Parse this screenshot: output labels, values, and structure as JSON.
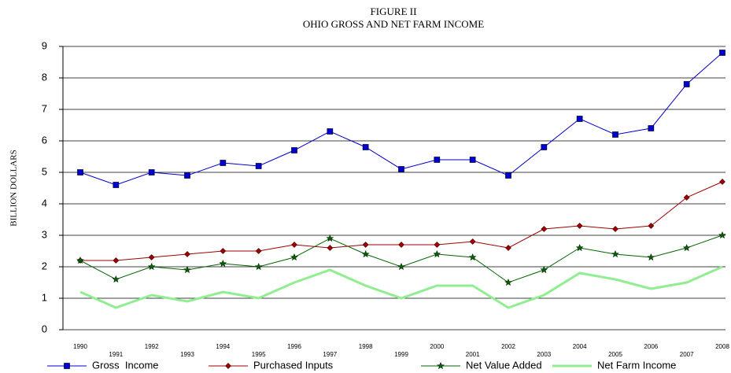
{
  "chart_data": {
    "type": "line",
    "title": "FIGURE II",
    "subtitle": "OHIO GROSS AND NET FARM INCOME",
    "y_label": "BILLION DOLLARS",
    "categories": [
      "1990",
      "1991",
      "1992",
      "1993",
      "1994",
      "1995",
      "1996",
      "1997",
      "1998",
      "1999",
      "2000",
      "2001",
      "2002",
      "2003",
      "2004",
      "2005",
      "2006",
      "2007",
      "2008"
    ],
    "series": [
      {
        "name": "Gross  Income",
        "color": "#0000cc",
        "marker": "square",
        "values": [
          5.0,
          4.6,
          5.0,
          4.9,
          5.3,
          5.2,
          5.7,
          6.3,
          5.8,
          5.1,
          5.4,
          5.4,
          4.9,
          5.8,
          6.7,
          6.2,
          6.4,
          7.8,
          8.8
        ]
      },
      {
        "name": "Purchased Inputs",
        "color": "#a00000",
        "marker": "diamond",
        "values": [
          2.2,
          2.2,
          2.3,
          2.4,
          2.5,
          2.5,
          2.7,
          2.6,
          2.7,
          2.7,
          2.7,
          2.8,
          2.6,
          3.2,
          3.3,
          3.2,
          3.3,
          4.2,
          4.7
        ]
      },
      {
        "name": "Net Value Added",
        "color": "#006400",
        "marker": "star",
        "values": [
          2.2,
          1.6,
          2.0,
          1.9,
          2.1,
          2.0,
          2.3,
          2.9,
          2.4,
          2.0,
          2.4,
          2.3,
          1.5,
          1.9,
          2.6,
          2.4,
          2.3,
          2.6,
          3.0
        ]
      },
      {
        "name": "Net Farm Income",
        "color": "#90ee90",
        "marker": "none",
        "values": [
          1.2,
          0.7,
          1.1,
          0.9,
          1.2,
          1.0,
          1.5,
          1.9,
          1.4,
          1.0,
          1.4,
          1.4,
          0.7,
          1.1,
          1.8,
          1.6,
          1.3,
          1.5,
          2.0
        ]
      }
    ],
    "ylim": [
      0,
      9
    ],
    "yticks": [
      0,
      1,
      2,
      3,
      4,
      5,
      6,
      7,
      8,
      9
    ],
    "grid": true,
    "legend": "bottom"
  }
}
